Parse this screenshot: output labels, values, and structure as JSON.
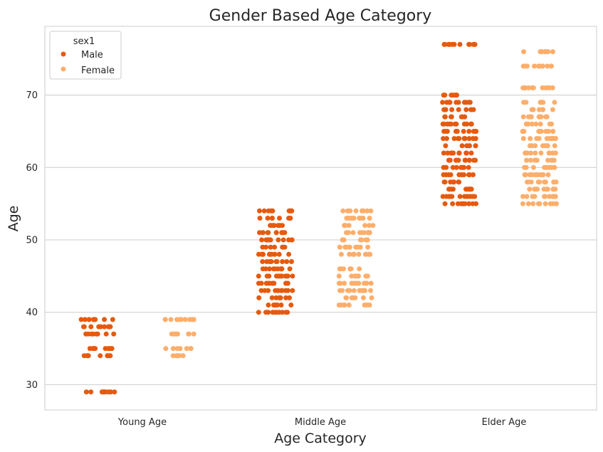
{
  "chart_data": {
    "type": "scatter",
    "subtype": "stripplot",
    "title": "Gender Based Age Category",
    "xlabel": "Age Category",
    "ylabel": "Age",
    "categories": [
      "Young Age",
      "Middle Age",
      "Elder Age"
    ],
    "ylim": [
      26.5,
      79.5
    ],
    "yticks": [
      30,
      40,
      50,
      60,
      70
    ],
    "grid": "horizontal",
    "legend": {
      "title": "sex1",
      "placement": "top-left"
    },
    "series": [
      {
        "name": "Male",
        "color": "#e55a0f",
        "points": [
          {
            "category": "Young Age",
            "ages": [
              29,
              34,
              35,
              37,
              38,
              39
            ]
          },
          {
            "category": "Middle Age",
            "ages": [
              40,
              41,
              42,
              43,
              44,
              45,
              46,
              47,
              48,
              49,
              50,
              51,
              52,
              53,
              54
            ]
          },
          {
            "category": "Elder Age",
            "ages": [
              55,
              56,
              57,
              58,
              59,
              60,
              61,
              62,
              63,
              64,
              65,
              66,
              67,
              68,
              69,
              70,
              77
            ]
          }
        ]
      },
      {
        "name": "Female",
        "color": "#fdae6b",
        "points": [
          {
            "category": "Young Age",
            "ages": [
              34,
              35,
              37,
              39
            ]
          },
          {
            "category": "Middle Age",
            "ages": [
              41,
              42,
              43,
              44,
              45,
              46,
              48,
              49,
              50,
              51,
              52,
              53,
              54
            ]
          },
          {
            "category": "Elder Age",
            "ages": [
              55,
              56,
              57,
              58,
              59,
              60,
              61,
              62,
              63,
              64,
              65,
              66,
              67,
              68,
              69,
              71,
              74,
              76
            ]
          }
        ]
      }
    ]
  }
}
